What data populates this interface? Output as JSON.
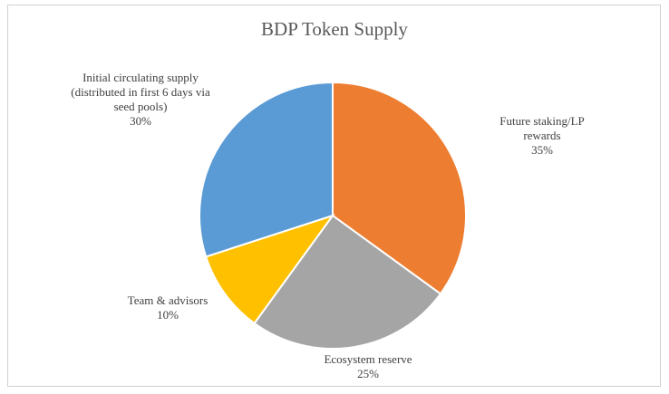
{
  "chart_data": {
    "type": "pie",
    "title": "BDP Token Supply",
    "categories": [
      "Future staking/LP rewards",
      "Ecosystem reserve",
      "Team & advisors",
      "Initial circulating supply (distributed in first 6 days via seed pools)"
    ],
    "values": [
      35,
      25,
      10,
      30
    ],
    "value_labels": [
      "35%",
      "25%",
      "10%",
      "30%"
    ],
    "colors": [
      "#ED7D31",
      "#A5A5A5",
      "#FFC000",
      "#5B9BD5"
    ]
  }
}
